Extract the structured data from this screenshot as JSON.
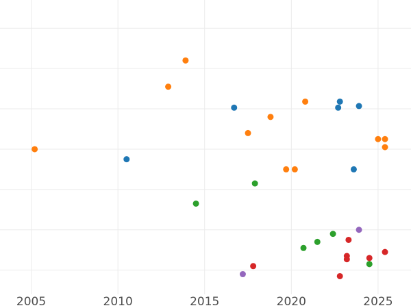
{
  "chart_data": {
    "type": "scatter",
    "title": "",
    "xlabel": "",
    "ylabel": "",
    "xlim": [
      2003.2,
      2026.9
    ],
    "ylim": [
      0,
      7.3
    ],
    "x_ticks": [
      2005,
      2010,
      2015,
      2020,
      2025
    ],
    "x_tick_labels": [
      "2005",
      "2010",
      "2015",
      "2020",
      "2025"
    ],
    "y_gridlines": [
      0.6,
      1.6,
      2.6,
      3.6,
      4.6,
      5.6,
      6.6
    ],
    "grid": true,
    "legend": "none",
    "series": [
      {
        "color": "#1f77b4",
        "points": [
          {
            "x": 2010.5,
            "y": 3.35
          },
          {
            "x": 2016.7,
            "y": 4.63
          },
          {
            "x": 2022.7,
            "y": 4.63
          },
          {
            "x": 2022.8,
            "y": 4.78
          },
          {
            "x": 2023.9,
            "y": 4.67
          },
          {
            "x": 2023.6,
            "y": 3.1
          }
        ]
      },
      {
        "color": "#ff7f0e",
        "points": [
          {
            "x": 2005.2,
            "y": 3.6
          },
          {
            "x": 2012.9,
            "y": 5.15
          },
          {
            "x": 2013.9,
            "y": 5.8
          },
          {
            "x": 2017.5,
            "y": 4.0
          },
          {
            "x": 2018.8,
            "y": 4.4
          },
          {
            "x": 2019.7,
            "y": 3.1
          },
          {
            "x": 2020.2,
            "y": 3.1
          },
          {
            "x": 2020.8,
            "y": 4.78
          },
          {
            "x": 2025.0,
            "y": 3.85
          },
          {
            "x": 2025.4,
            "y": 3.85
          },
          {
            "x": 2025.4,
            "y": 3.65
          }
        ]
      },
      {
        "color": "#2ca02c",
        "points": [
          {
            "x": 2014.5,
            "y": 2.25
          },
          {
            "x": 2017.9,
            "y": 2.75
          },
          {
            "x": 2020.7,
            "y": 1.15
          },
          {
            "x": 2021.5,
            "y": 1.3
          },
          {
            "x": 2022.4,
            "y": 1.5
          },
          {
            "x": 2024.5,
            "y": 0.75
          }
        ]
      },
      {
        "color": "#d62728",
        "points": [
          {
            "x": 2017.8,
            "y": 0.7
          },
          {
            "x": 2022.8,
            "y": 0.45
          },
          {
            "x": 2023.2,
            "y": 0.95
          },
          {
            "x": 2023.2,
            "y": 0.87
          },
          {
            "x": 2023.3,
            "y": 1.35
          },
          {
            "x": 2024.5,
            "y": 0.9
          },
          {
            "x": 2025.4,
            "y": 1.05
          }
        ]
      },
      {
        "color": "#9467bd",
        "points": [
          {
            "x": 2017.2,
            "y": 0.5
          },
          {
            "x": 2023.9,
            "y": 1.6
          }
        ]
      }
    ]
  }
}
